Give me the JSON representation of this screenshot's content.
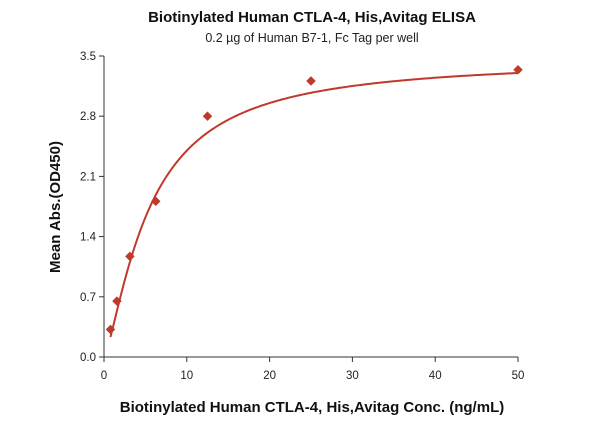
{
  "chart_data": {
    "type": "scatter",
    "title": "Biotinylated Human CTLA-4, His,Avitag ELISA",
    "subtitle": "0.2 µg of Human B7-1, Fc Tag per well",
    "xlabel": "Biotinylated Human CTLA-4, His,Avitag Conc. (ng/mL)",
    "ylabel": "Mean Abs.(OD450)",
    "xlim": [
      0,
      50
    ],
    "ylim": [
      0,
      3.5
    ],
    "xticks": [
      0,
      10,
      20,
      30,
      40,
      50
    ],
    "yticks": [
      0.0,
      0.7,
      1.4,
      2.1,
      2.8,
      3.5
    ],
    "ytick_labels": [
      "0.0",
      "0.7",
      "1.4",
      "2.1",
      "2.8",
      "3.5"
    ],
    "grid": false,
    "legend": "none",
    "series": [
      {
        "marker": "diamond",
        "color": "#c0392b",
        "points": [
          {
            "x": 0.78,
            "y": 0.32
          },
          {
            "x": 1.56,
            "y": 0.65
          },
          {
            "x": 3.13,
            "y": 1.17
          },
          {
            "x": 6.25,
            "y": 1.81
          },
          {
            "x": 12.5,
            "y": 2.8
          },
          {
            "x": 25,
            "y": 3.21
          },
          {
            "x": 50,
            "y": 3.34
          }
        ]
      }
    ],
    "fit_line": {
      "color": "#c0392b",
      "model": "4PL",
      "bottom": 0.0,
      "top": 3.47,
      "ec50": 5.5,
      "hill": 1.35,
      "x_range": [
        0.78,
        50
      ]
    }
  }
}
